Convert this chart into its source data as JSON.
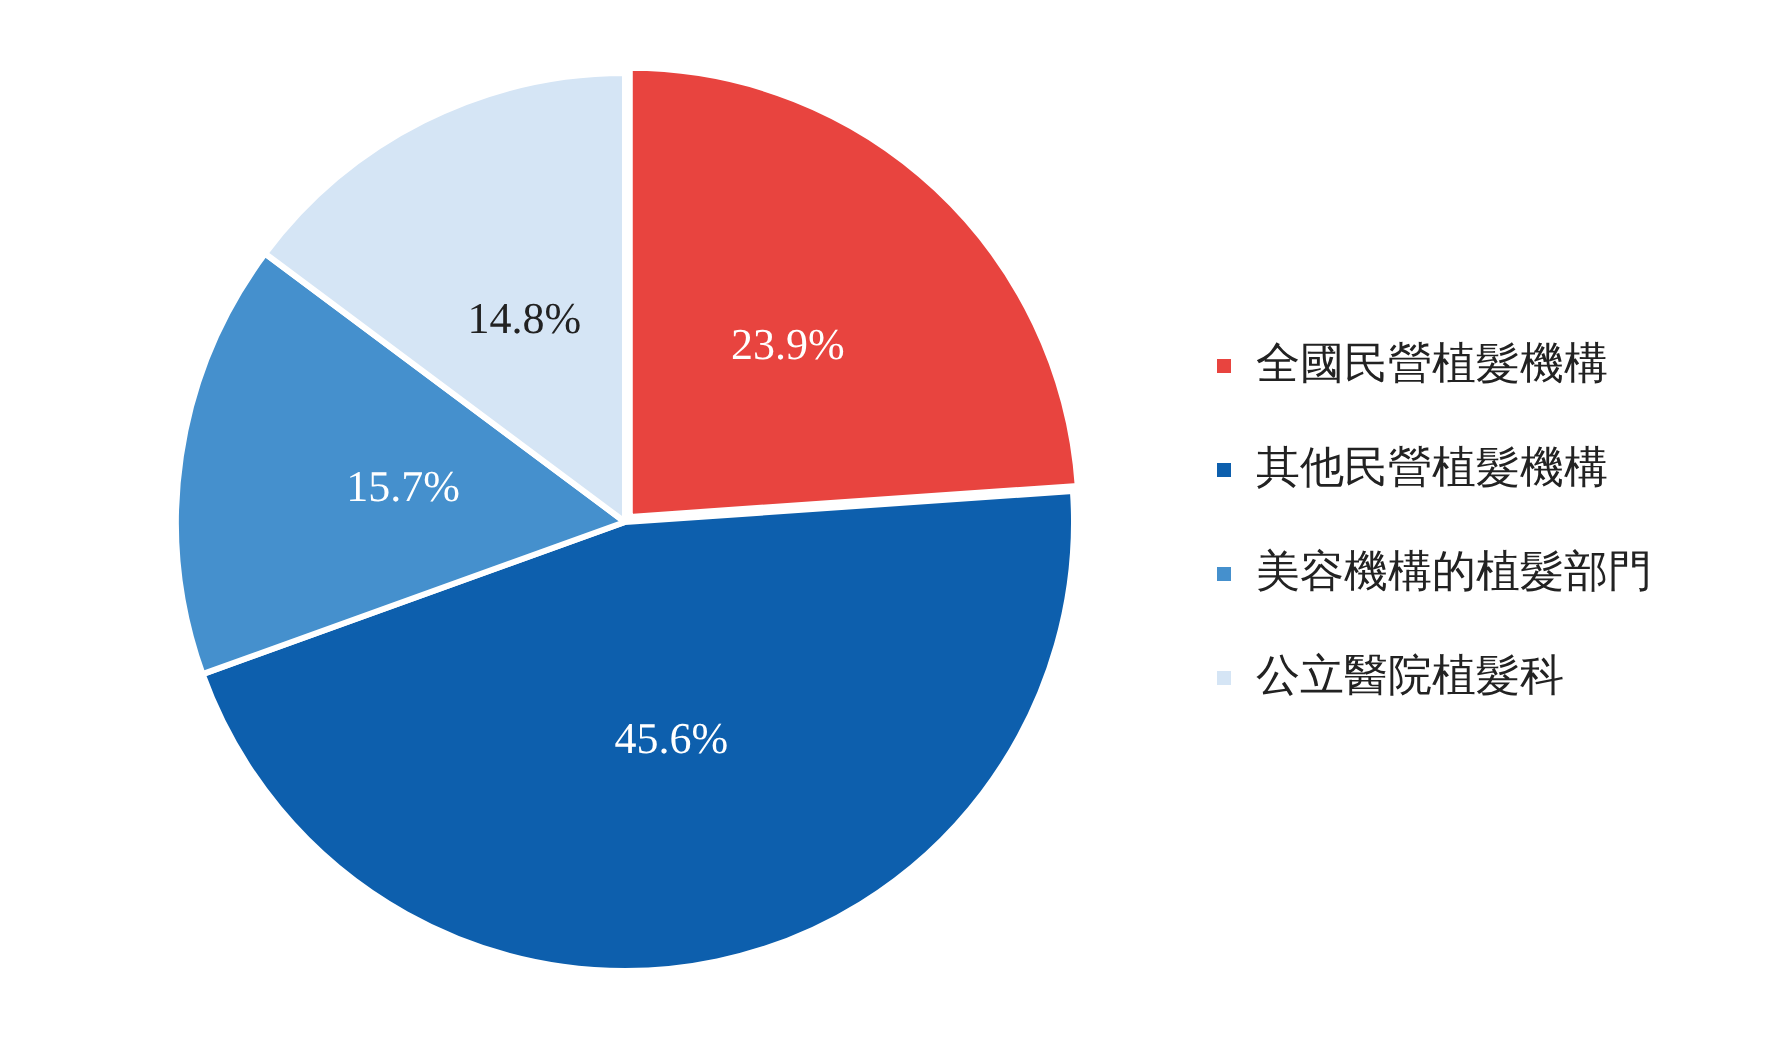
{
  "chart_data": {
    "type": "pie",
    "categories": [
      "全國民營植髮機構",
      "其他民營植髮機構",
      "美容機構的植髮部門",
      "公立醫院植髮科"
    ],
    "values": [
      23.9,
      45.6,
      15.7,
      14.8
    ],
    "colors": [
      "#e8443f",
      "#0d5fad",
      "#4590cd",
      "#d5e5f5"
    ],
    "value_labels": [
      "23.9%",
      "45.6%",
      "15.7%",
      "14.8%"
    ],
    "legend": "right"
  }
}
